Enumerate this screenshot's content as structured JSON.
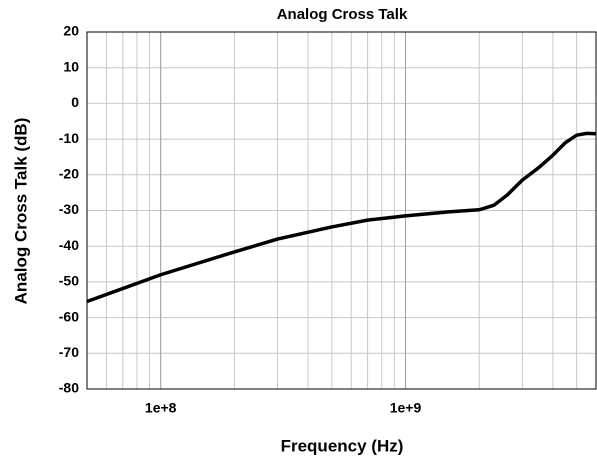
{
  "chart_data": {
    "type": "line",
    "title": "Analog Cross Talk",
    "xlabel": "Frequency (Hz)",
    "ylabel": "Analog Cross Talk (dB)",
    "x": [
      50000000,
      100000000,
      200000000,
      300000000,
      500000000,
      700000000,
      1000000000,
      1500000000,
      2000000000,
      2300000000,
      2600000000,
      3000000000,
      3500000000,
      4000000000,
      4500000000,
      5000000000,
      5500000000,
      6000000000
    ],
    "series": [
      {
        "name": "Analog Cross Talk",
        "color": "#000000",
        "values": [
          -55.5,
          -48,
          -41.6,
          -38,
          -34.6,
          -32.7,
          -31.5,
          -30.4,
          -29.8,
          -28.5,
          -25.7,
          -21.5,
          -18,
          -14.5,
          -11,
          -8.9,
          -8.4,
          -8.5
        ]
      }
    ],
    "xlog": true,
    "grid": true,
    "xlim": [
      50000000,
      6000000000
    ],
    "xticks": [
      {
        "value": 100000000,
        "label": "1e+8"
      },
      {
        "value": 1000000000,
        "label": "1e+9"
      }
    ],
    "ylim": [
      -80,
      20
    ],
    "yticks": [
      -80,
      -70,
      -60,
      -50,
      -40,
      -30,
      -20,
      -10,
      0,
      10,
      20
    ]
  }
}
